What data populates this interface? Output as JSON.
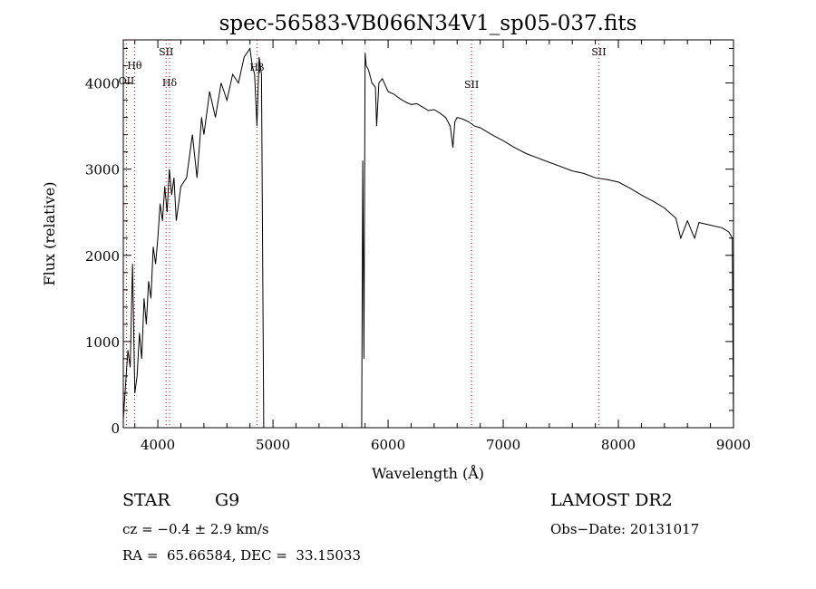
{
  "chart_data": {
    "type": "line",
    "title": "spec-56583-VB066N34V1_sp05-037.fits",
    "xlabel": "Wavelength (Å)",
    "ylabel": "Flux (relative)",
    "xlim": [
      3700,
      9000
    ],
    "ylim": [
      0,
      4500
    ],
    "x_ticks": [
      4000,
      5000,
      6000,
      7000,
      8000,
      9000
    ],
    "y_ticks": [
      0,
      1000,
      2000,
      3000,
      4000
    ],
    "grid": false,
    "line_color": "#000000",
    "marker_color": "#cc0000",
    "series": [
      {
        "x": [
          3700,
          3720,
          3740,
          3760,
          3780,
          3800,
          3820,
          3840,
          3860,
          3880,
          3900,
          3920,
          3940,
          3960,
          3980,
          4000,
          4020,
          4040,
          4060,
          4080,
          4100,
          4120,
          4140,
          4160,
          4180,
          4200,
          4250,
          4300,
          4340,
          4380,
          4400,
          4450,
          4500,
          4550,
          4600,
          4650,
          4700,
          4750,
          4800,
          4820,
          4840,
          4861,
          4880,
          4900,
          4920,
          4930,
          4940,
          5770,
          5780,
          5790,
          5800,
          5810,
          5830,
          5860,
          5890,
          5900,
          5920,
          5950,
          6000,
          6050,
          6100,
          6150,
          6200,
          6250,
          6300,
          6350,
          6400,
          6450,
          6500,
          6540,
          6563,
          6580,
          6600,
          6650,
          6700,
          6750,
          6800,
          6900,
          7000,
          7100,
          7200,
          7300,
          7400,
          7500,
          7600,
          7700,
          7800,
          7900,
          8000,
          8100,
          8200,
          8300,
          8400,
          8500,
          8542,
          8600,
          8662,
          8700,
          8800,
          8900,
          8960,
          8990,
          9000
        ],
        "y": [
          100,
          500,
          900,
          700,
          1900,
          400,
          600,
          1100,
          800,
          1500,
          1200,
          1700,
          1500,
          2100,
          1900,
          2200,
          2600,
          2400,
          2800,
          2500,
          3000,
          2700,
          2900,
          2400,
          2600,
          2800,
          2900,
          3400,
          2900,
          3600,
          3400,
          3900,
          3600,
          4000,
          3800,
          4100,
          4000,
          4300,
          4400,
          4200,
          4100,
          3500,
          4300,
          4100,
          0,
          0,
          0,
          0,
          3100,
          800,
          4350,
          4200,
          4150,
          4000,
          3950,
          3500,
          4000,
          4050,
          3900,
          3870,
          3820,
          3780,
          3750,
          3760,
          3720,
          3680,
          3690,
          3650,
          3600,
          3500,
          3250,
          3550,
          3600,
          3580,
          3550,
          3500,
          3480,
          3400,
          3330,
          3250,
          3180,
          3130,
          3080,
          3030,
          2980,
          2950,
          2900,
          2880,
          2850,
          2780,
          2700,
          2630,
          2550,
          2430,
          2200,
          2400,
          2200,
          2380,
          2350,
          2320,
          2270,
          2200,
          0
        ]
      }
    ],
    "line_markers": [
      {
        "label": "Hθ",
        "x": 3798
      },
      {
        "label": "OII",
        "x": 3727
      },
      {
        "label": "SII",
        "x": 4072
      },
      {
        "label": "Hδ",
        "x": 4102
      },
      {
        "label": "Hβ",
        "x": 4861
      },
      {
        "label": "SII",
        "x": 6725
      },
      {
        "label": "SII",
        "x": 7830
      }
    ]
  },
  "info": {
    "object_type": "STAR",
    "subclass": "G9",
    "survey": "LAMOST DR2",
    "cz": "cz = −0.4 ± 2.9 km/s",
    "obs_date": "Obs−Date: 20131017",
    "coords": "RA =  65.66584, DEC =  33.15033"
  }
}
